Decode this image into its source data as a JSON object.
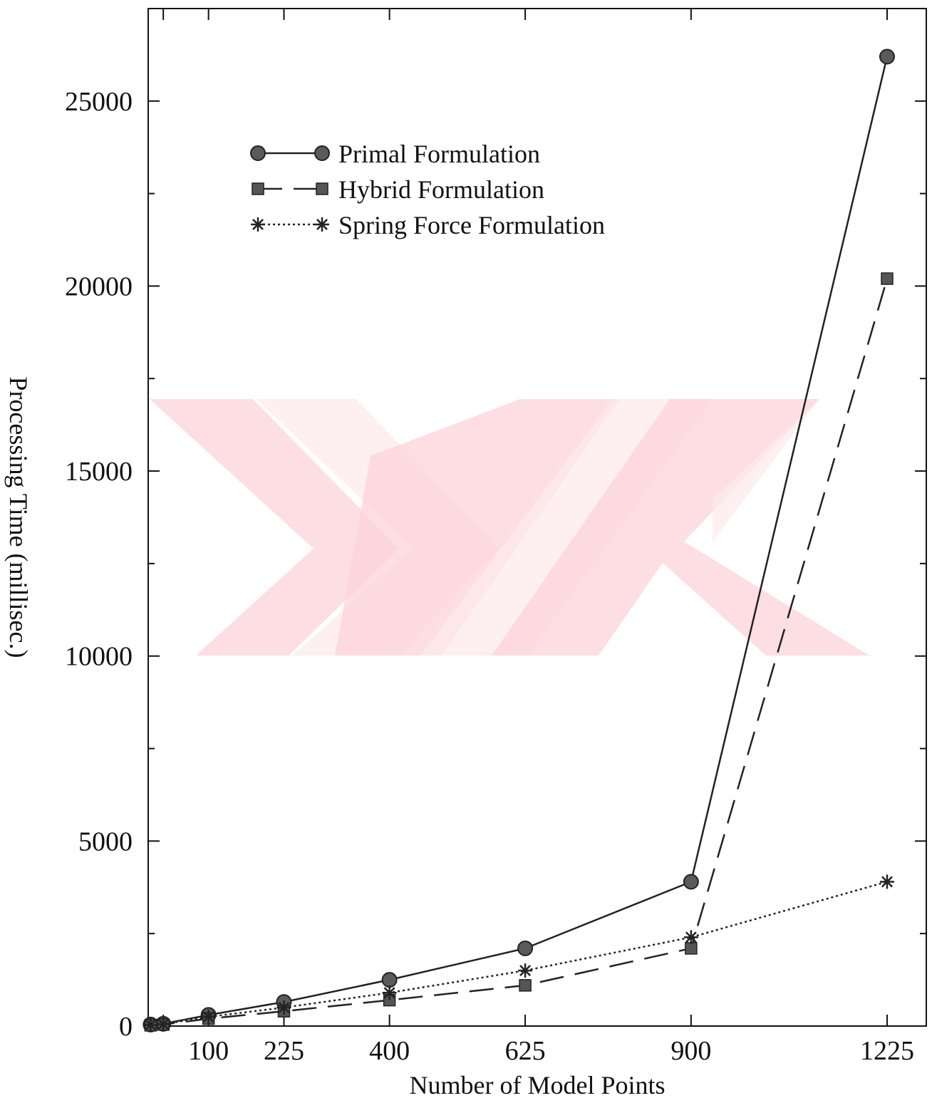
{
  "chart_data": {
    "type": "line",
    "title": "",
    "xlabel": "Number of Model Points",
    "ylabel": "Processing Time (millisec.)",
    "xlim": [
      0,
      1290
    ],
    "ylim": [
      0,
      27500
    ],
    "x_ticks": [
      100,
      225,
      400,
      625,
      900,
      1225
    ],
    "y_ticks": [
      0,
      5000,
      10000,
      15000,
      20000,
      25000
    ],
    "legend_position": "top-left",
    "grid": false,
    "watermark_colors": [
      "#fcd3d8",
      "#fde9eb"
    ],
    "series": [
      {
        "name": "Primal Formulation",
        "line_style": "solid",
        "marker": "circle",
        "color": "#222222",
        "x": [
          4,
          25,
          100,
          225,
          400,
          625,
          900,
          1225
        ],
        "y": [
          40,
          60,
          300,
          650,
          1250,
          2100,
          3900,
          26200
        ]
      },
      {
        "name": "Hybrid Formulation",
        "line_style": "dashed",
        "marker": "square",
        "color": "#222222",
        "x": [
          4,
          25,
          100,
          225,
          400,
          625,
          900,
          1225
        ],
        "y": [
          20,
          40,
          200,
          400,
          700,
          1100,
          2100,
          20200
        ]
      },
      {
        "name": "Spring Force Formulation",
        "line_style": "dotted",
        "marker": "asterisk",
        "color": "#222222",
        "x": [
          4,
          25,
          100,
          225,
          400,
          625,
          900,
          1225
        ],
        "y": [
          30,
          50,
          250,
          500,
          900,
          1500,
          2400,
          3900
        ]
      }
    ]
  }
}
